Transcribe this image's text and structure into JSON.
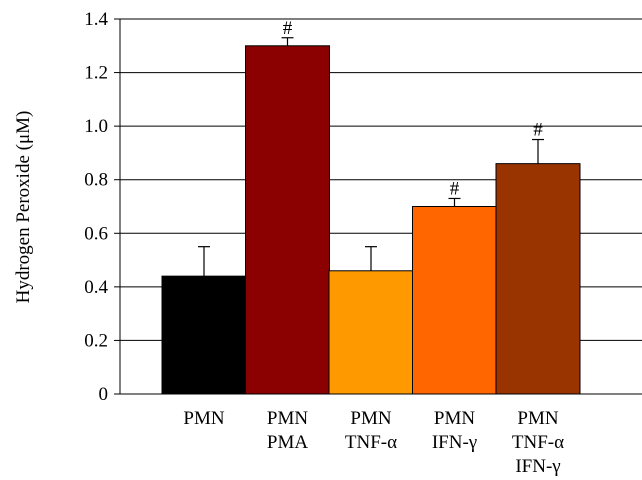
{
  "chart_data": {
    "type": "bar",
    "title": "",
    "xlabel": "",
    "ylabel": "Hydrogen Peroxide (μM)",
    "ylim": [
      0,
      1.4
    ],
    "yticks": [
      "0",
      "0.2",
      "0.4",
      "0.6",
      "0.8",
      "1.0",
      "1.2",
      "1.4"
    ],
    "grid": true,
    "categories": [
      [
        "PMN"
      ],
      [
        "PMN",
        "PMA"
      ],
      [
        "PMN",
        "TNF-α"
      ],
      [
        "PMN",
        "IFN-γ"
      ],
      [
        "PMN",
        "TNF-α",
        "IFN-γ"
      ]
    ],
    "values": [
      0.44,
      1.3,
      0.46,
      0.7,
      0.86
    ],
    "errors": [
      0.11,
      0.03,
      0.09,
      0.03,
      0.09
    ],
    "significance": [
      "",
      "#",
      "",
      "#",
      "#"
    ],
    "colors": [
      "#000000",
      "#8b0000",
      "#ff9900",
      "#ff6600",
      "#993300"
    ]
  }
}
